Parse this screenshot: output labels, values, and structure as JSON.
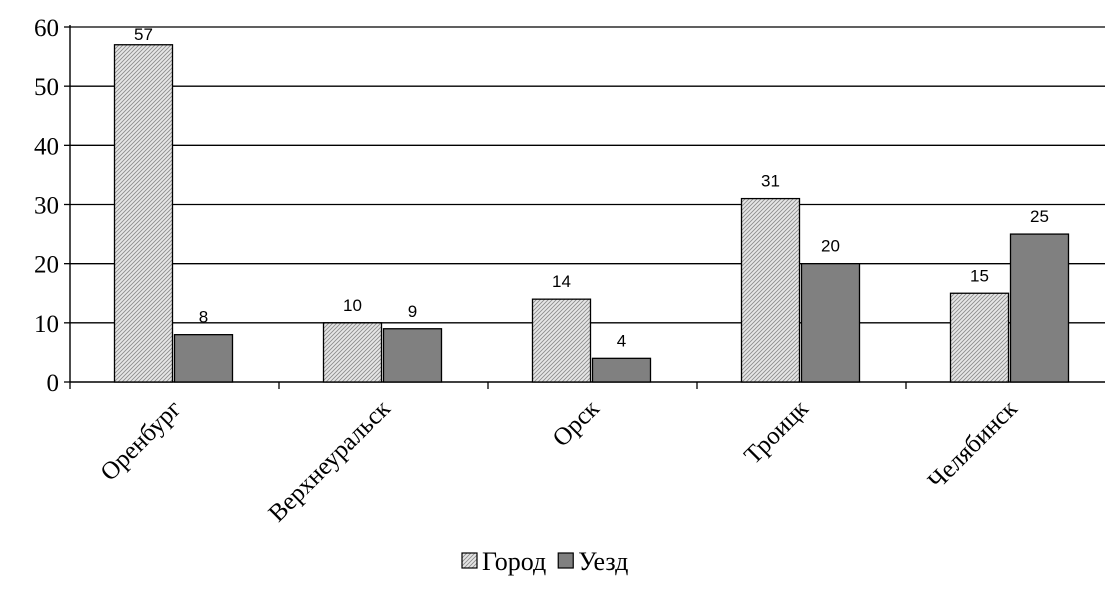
{
  "chart_data": {
    "type": "bar",
    "categories": [
      "Оренбург",
      "Верхнеуральск",
      "Орск",
      "Троицк",
      "Челябинск"
    ],
    "series": [
      {
        "name": "Город",
        "values": [
          57,
          10,
          14,
          31,
          15
        ],
        "color": "#d9d9d9",
        "pattern": "hatch"
      },
      {
        "name": "Уезд",
        "values": [
          8,
          9,
          4,
          20,
          25
        ],
        "color": "#808080",
        "pattern": "solid"
      }
    ],
    "ylim": [
      0,
      60
    ],
    "yticks": [
      "0",
      "10",
      "20",
      "30",
      "40",
      "50",
      "60"
    ],
    "grid": true,
    "legend_position": "bottom",
    "title": "",
    "xlabel": "",
    "ylabel": ""
  }
}
